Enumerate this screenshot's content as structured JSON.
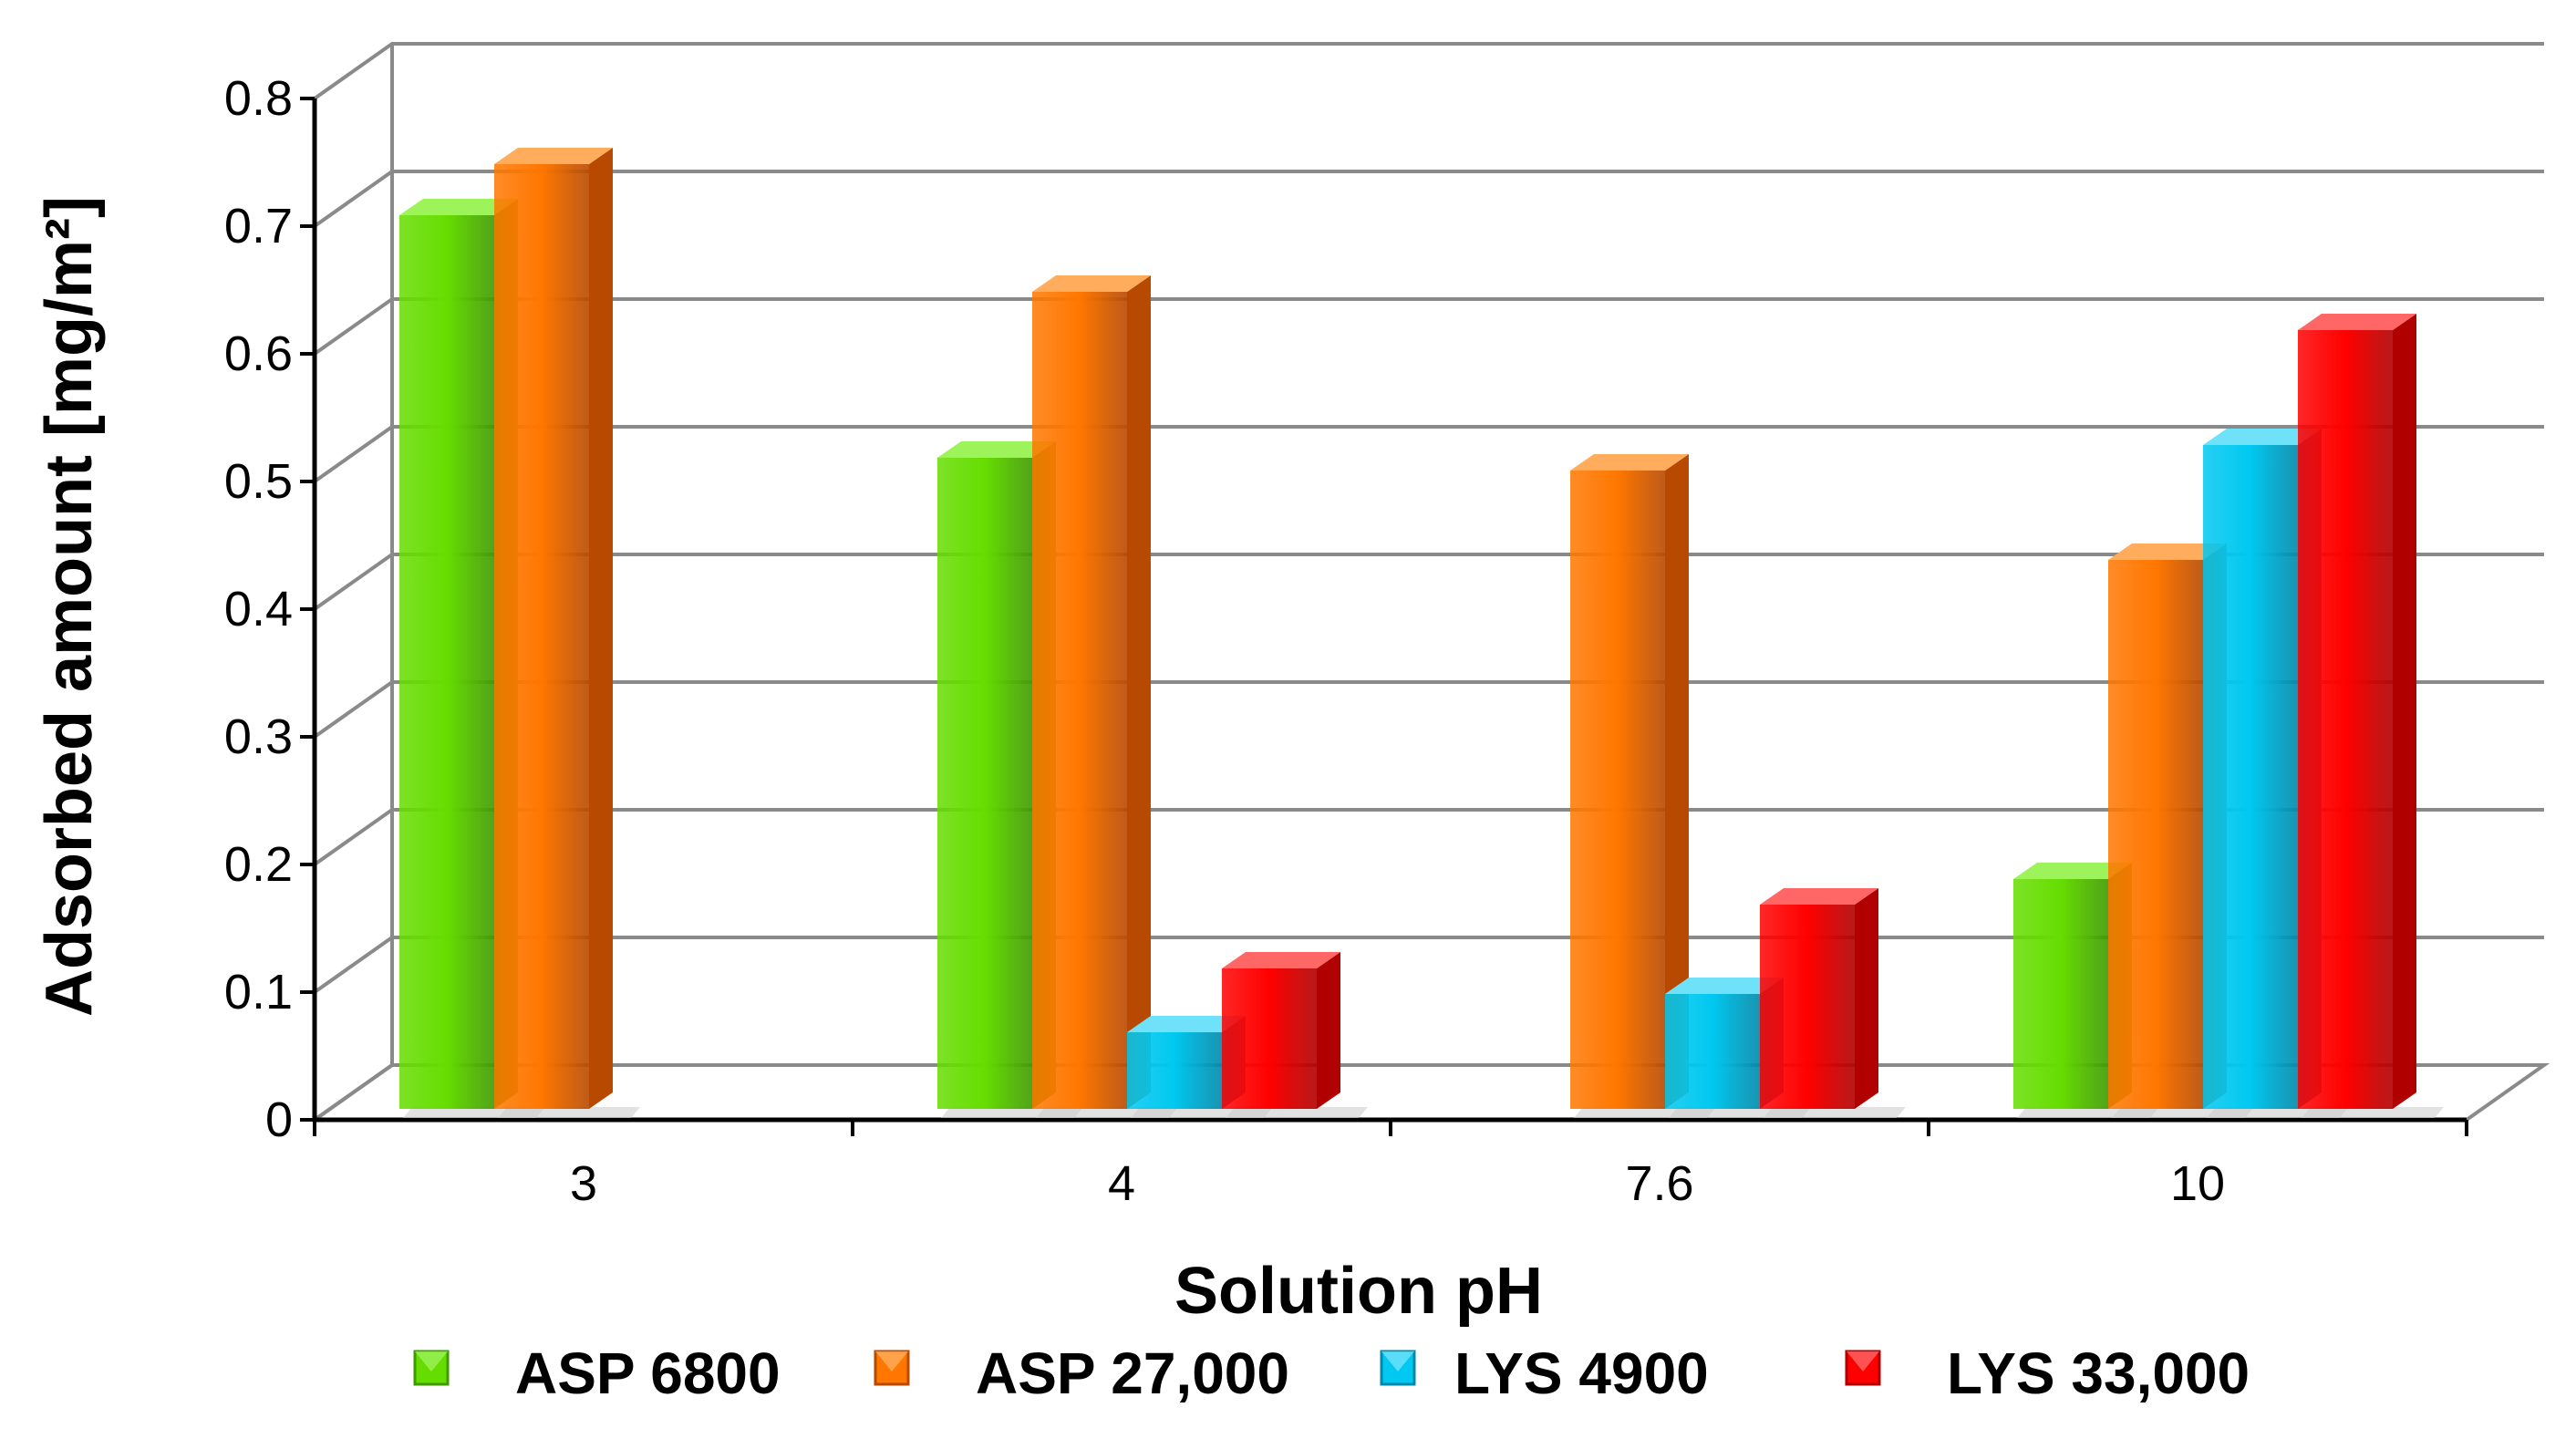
{
  "chart_data": {
    "type": "bar",
    "style": "3d-clustered-column",
    "title": "",
    "xlabel": "Solution pH",
    "ylabel": "Adsorbed amount [mg/m²]",
    "categories": [
      "3",
      "4",
      "7.6",
      "10"
    ],
    "ylim": [
      0,
      0.8
    ],
    "yticks": [
      0,
      0.1,
      0.2,
      0.3,
      0.4,
      0.5,
      0.6,
      0.7,
      0.8
    ],
    "ytick_labels": [
      "0",
      "0.1",
      "0.2",
      "0.3",
      "0.4",
      "0.5",
      "0.6",
      "0.7",
      "0.8"
    ],
    "grid": true,
    "legend_position": "bottom",
    "series": [
      {
        "name": "ASP 6800",
        "values": [
          0.7,
          0.51,
          null,
          0.18
        ],
        "color": "#66dd00",
        "side": "#3f9a00",
        "top": "#9cf35a"
      },
      {
        "name": "ASP 27,000",
        "values": [
          0.74,
          0.64,
          0.5,
          0.43
        ],
        "color": "#ff7700",
        "side": "#b74a00",
        "top": "#ffac5c"
      },
      {
        "name": "LYS 4900",
        "values": [
          null,
          0.06,
          0.09,
          0.52
        ],
        "color": "#00c8f0",
        "side": "#0089aa",
        "top": "#6fe2fa"
      },
      {
        "name": "LYS 33,000",
        "values": [
          null,
          0.11,
          0.16,
          0.61
        ],
        "color": "#ff0000",
        "side": "#b00000",
        "top": "#ff6666"
      }
    ]
  }
}
